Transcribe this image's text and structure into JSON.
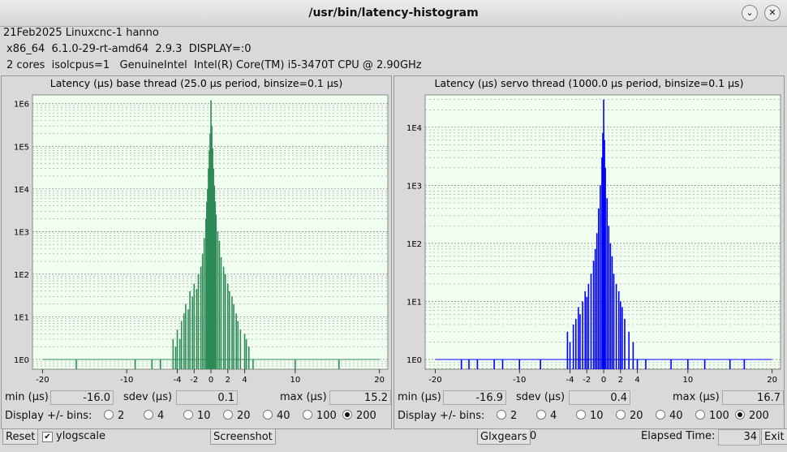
{
  "window": {
    "title": "/usr/bin/latency-histogram"
  },
  "info": [
    "21Feb2025 Linuxcnc-1 hanno",
    "x86_64  6.1.0-29-rt-amd64  2.9.3  DISPLAY=:0",
    "2 cores  isolcpus=1   GenuineIntel  Intel(R) Core(TM) i5-3470T CPU @ 2.90GHz"
  ],
  "panels": [
    {
      "chart_data": {
        "type": "bar",
        "title": "Latency (µs) base thread (25.0 µs period, binsize=0.1 µs)",
        "color": "#2e8b57",
        "log_scale": true,
        "x": [
          -16.0,
          -9,
          -7,
          -6,
          -4.5,
          -4.2,
          -4,
          -3.7,
          -3.5,
          -3.2,
          -3,
          -2.7,
          -2.5,
          -2.2,
          -2,
          -1.7,
          -1.5,
          -1.2,
          -1,
          -0.8,
          -0.6,
          -0.5,
          -0.4,
          -0.3,
          -0.2,
          -0.1,
          0,
          0.1,
          0.2,
          0.3,
          0.4,
          0.5,
          0.6,
          0.8,
          1,
          1.2,
          1.5,
          1.7,
          2,
          2.2,
          2.5,
          2.7,
          3,
          3.2,
          3.5,
          4,
          4.2,
          4.5,
          5,
          10,
          15.2
        ],
        "values": [
          1,
          1,
          1,
          1,
          3,
          2,
          5,
          3,
          8,
          12,
          20,
          15,
          40,
          30,
          60,
          45,
          100,
          150,
          300,
          700,
          2000,
          5000,
          10000,
          30000,
          80000,
          200000,
          1200000,
          300000,
          90000,
          30000,
          12000,
          5000,
          2500,
          1000,
          600,
          250,
          150,
          100,
          60,
          40,
          30,
          20,
          12,
          8,
          5,
          4,
          3,
          2,
          1,
          1,
          1
        ],
        "xlim": [
          -21.2,
          21
        ],
        "xticks": [
          -20,
          -10,
          -4,
          -2,
          0,
          2,
          4,
          10,
          20
        ],
        "ylim": [
          0.59,
          1600000
        ],
        "yticks": [
          {
            "value": 1,
            "label": "1E0"
          },
          {
            "value": 10,
            "label": "1E1"
          },
          {
            "value": 100,
            "label": "1E2"
          },
          {
            "value": 1000,
            "label": "1E3"
          },
          {
            "value": 10000,
            "label": "1E4"
          },
          {
            "value": 100000,
            "label": "1E5"
          },
          {
            "value": 1000000,
            "label": "1E6"
          }
        ],
        "grid": true
      },
      "stats": {
        "min_label": "min (µs)",
        "min": "-16.0",
        "sdev_label": "sdev (µs)",
        "sdev": "0.1",
        "max_label": "max (µs)",
        "max": "15.2"
      },
      "bins_label": "Display +/- bins:",
      "bins_options": [
        2,
        4,
        10,
        20,
        40,
        100,
        200
      ],
      "bins_selected": 200
    },
    {
      "chart_data": {
        "type": "bar",
        "title": "Latency (µs) servo thread (1000.0 µs period, binsize=0.1 µs)",
        "color": "#0000ff",
        "log_scale": true,
        "x": [
          -16.9,
          -16,
          -15,
          -13,
          -12,
          -10,
          -7.5,
          -4.3,
          -4,
          -3.6,
          -3.3,
          -3,
          -2.8,
          -2.5,
          -2.2,
          -2,
          -1.8,
          -1.5,
          -1.2,
          -1,
          -0.8,
          -0.6,
          -0.4,
          -0.2,
          -0.1,
          0,
          0.1,
          0.2,
          0.4,
          0.6,
          0.8,
          1,
          1.2,
          1.5,
          1.8,
          2,
          2.2,
          2.5,
          3,
          3.5,
          4,
          5,
          8,
          10,
          12,
          15,
          16.7
        ],
        "values": [
          1,
          1,
          1,
          1,
          1,
          1,
          1,
          3,
          2,
          4,
          5,
          8,
          6,
          10,
          15,
          12,
          20,
          30,
          50,
          80,
          150,
          400,
          1000,
          3000,
          8000,
          30000,
          6000,
          2000,
          600,
          200,
          100,
          60,
          30,
          20,
          15,
          10,
          8,
          5,
          3,
          2,
          1,
          1,
          1,
          1,
          1,
          1,
          1
        ],
        "xlim": [
          -21.2,
          21
        ],
        "xticks": [
          -20,
          -10,
          -4,
          -2,
          0,
          2,
          4,
          10,
          20
        ],
        "ylim": [
          0.68,
          36000
        ],
        "yticks": [
          {
            "value": 1,
            "label": "1E0"
          },
          {
            "value": 10,
            "label": "1E1"
          },
          {
            "value": 100,
            "label": "1E2"
          },
          {
            "value": 1000,
            "label": "1E3"
          },
          {
            "value": 10000,
            "label": "1E4"
          }
        ],
        "grid": true
      },
      "stats": {
        "min_label": "min (µs)",
        "min": "-16.9",
        "sdev_label": "sdev (µs)",
        "sdev": "0.4",
        "max_label": "max (µs)",
        "max": "16.7"
      },
      "bins_label": "Display +/- bins:",
      "bins_options": [
        2,
        4,
        10,
        20,
        40,
        100,
        200
      ],
      "bins_selected": 200
    }
  ],
  "footer": {
    "reset": "Reset",
    "ylogscale": "ylogscale",
    "screenshot": "Screenshot",
    "glxgears": "Glxgears",
    "glxgears_value": "0",
    "elapsed_label": "Elapsed Time:",
    "elapsed": "34",
    "exit": "Exit"
  }
}
